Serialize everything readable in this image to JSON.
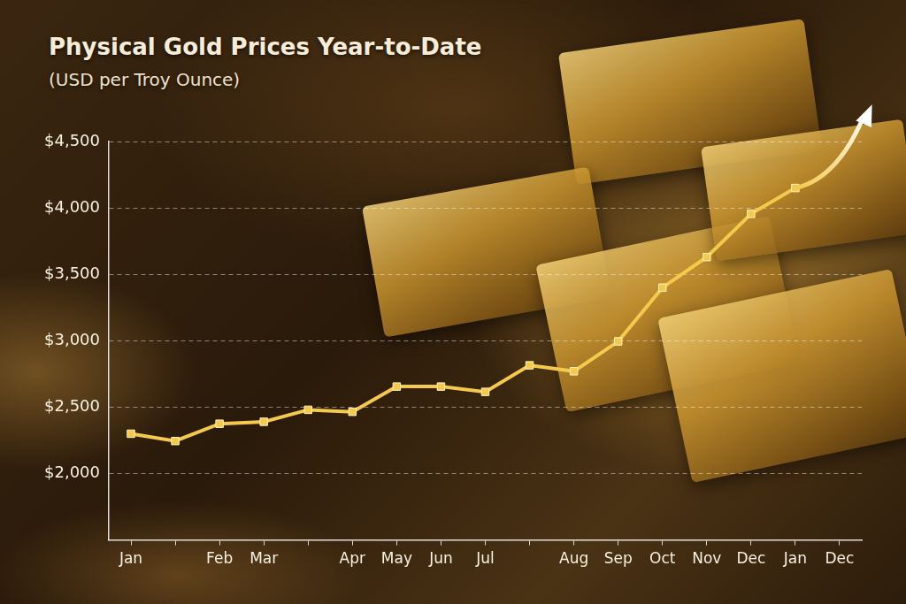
{
  "chart_data": {
    "type": "line",
    "title": "Physical Gold Prices Year-to-Date",
    "subtitle": "(USD per Troy Ounce)",
    "categories": [
      "Jan",
      null,
      "Feb",
      "Mar",
      null,
      "Apr",
      "May",
      "Jun",
      "Jul",
      null,
      "Aug",
      "Sep",
      "Oct",
      "Nov",
      "Dec",
      "Jan",
      "Dec"
    ],
    "values": [
      2300,
      2245,
      2375,
      2390,
      2480,
      2465,
      2655,
      2655,
      2615,
      2815,
      2770,
      2995,
      3400,
      3630,
      3955,
      4150,
      null
    ],
    "color": "#f5c94c",
    "marker": "square",
    "ylim": [
      1500,
      4500
    ],
    "yticks": [
      {
        "value": 2000,
        "label": "$2,000"
      },
      {
        "value": 2500,
        "label": "$2,500"
      },
      {
        "value": 3000,
        "label": "$3,000"
      },
      {
        "value": 3500,
        "label": "$3,500"
      },
      {
        "value": 4000,
        "label": "$4,000"
      },
      {
        "value": 4500,
        "label": "$4,500"
      }
    ],
    "grid": true
  }
}
